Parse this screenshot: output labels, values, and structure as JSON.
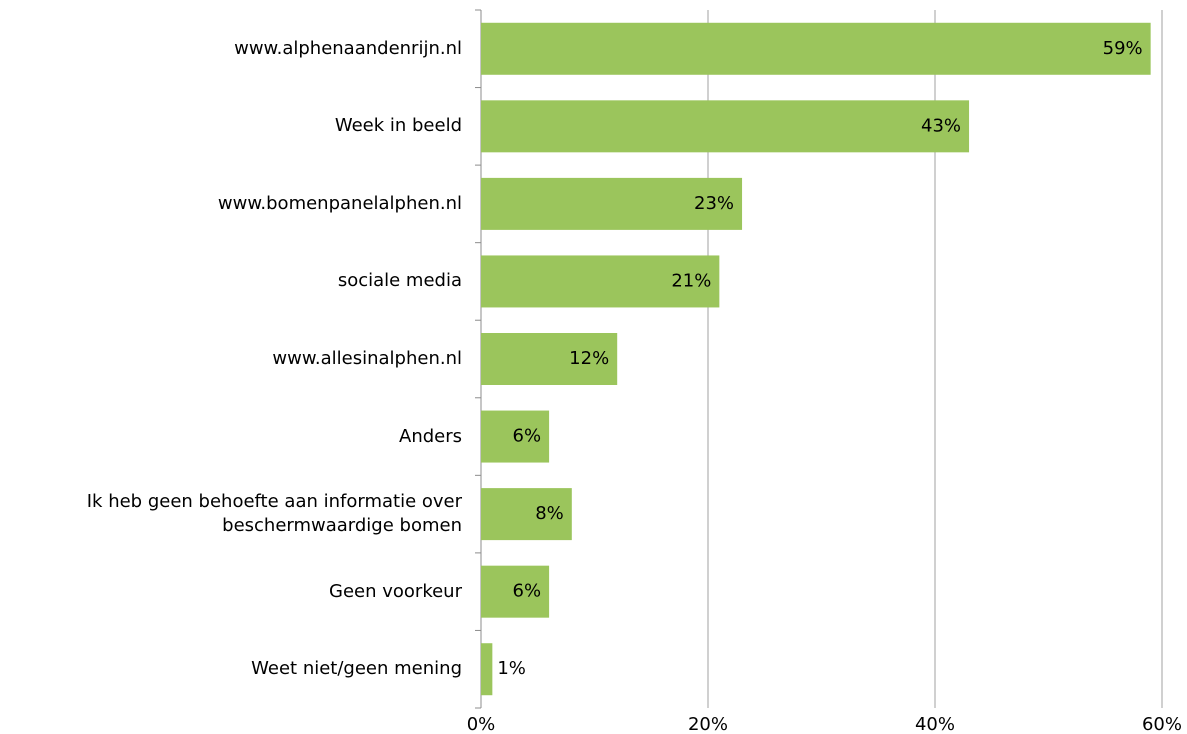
{
  "chart_data": {
    "type": "barh",
    "categories": [
      "www.alphenaandenrijn.nl",
      "Week in beeld",
      "www.bomenpanelalphen.nl",
      "sociale media",
      "www.allesinalphen.nl",
      "Anders",
      "Ik heb geen behoefte aan informatie over beschermwaardige bomen",
      "Geen voorkeur",
      "Weet niet/geen mening"
    ],
    "values": [
      59,
      43,
      23,
      21,
      12,
      6,
      8,
      6,
      1
    ],
    "value_labels": [
      "59%",
      "43%",
      "23%",
      "21%",
      "12%",
      "6%",
      "8%",
      "6%",
      "1%"
    ],
    "color": "#9bc55c",
    "xlim": [
      0,
      60
    ],
    "xticks": [
      {
        "value": 0,
        "label": "0%"
      },
      {
        "value": 20,
        "label": "20%"
      },
      {
        "value": 40,
        "label": "40%"
      },
      {
        "value": 60,
        "label": "60%"
      }
    ],
    "grid": true
  }
}
